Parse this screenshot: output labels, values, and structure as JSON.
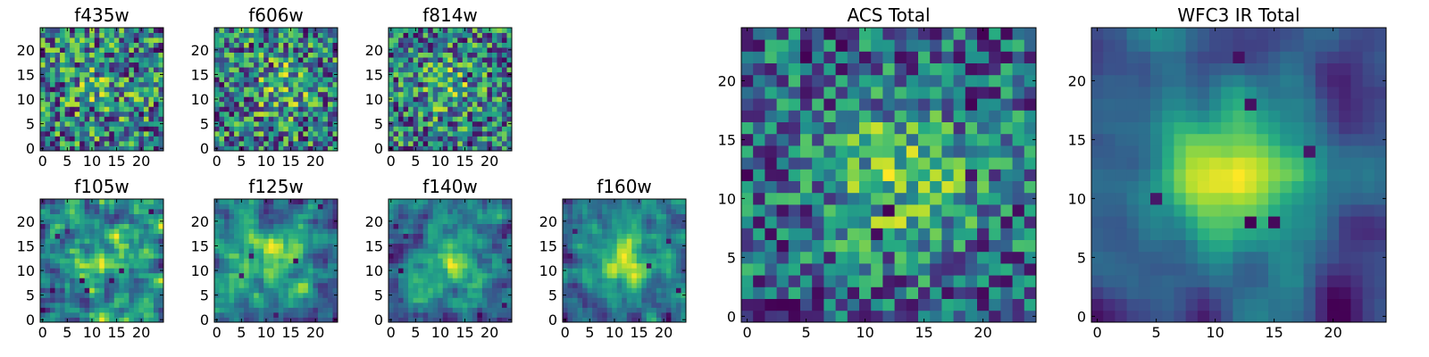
{
  "figure": {
    "description_free": true
  },
  "colors": {
    "colormap": "viridis",
    "frame": "#000000",
    "background": "#ffffff"
  },
  "chart_data": [
    {
      "id": "f435w",
      "type": "heatmap",
      "title": "f435w",
      "grid_size": 25,
      "xticks": [
        0,
        5,
        10,
        15,
        20
      ],
      "yticks": [
        0,
        5,
        10,
        15,
        20
      ],
      "xlim": [
        -0.5,
        24.5
      ],
      "ylim": [
        -0.5,
        24.5
      ],
      "smoothness": 0,
      "peak": [
        12,
        12
      ],
      "peak_strength": 0.15,
      "seed": 11
    },
    {
      "id": "f606w",
      "type": "heatmap",
      "title": "f606w",
      "grid_size": 25,
      "xticks": [
        0,
        5,
        10,
        15,
        20
      ],
      "yticks": [
        0,
        5,
        10,
        15,
        20
      ],
      "xlim": [
        -0.5,
        24.5
      ],
      "ylim": [
        -0.5,
        24.5
      ],
      "smoothness": 0,
      "peak": [
        13,
        13
      ],
      "peak_strength": 0.2,
      "seed": 23
    },
    {
      "id": "f814w",
      "type": "heatmap",
      "title": "f814w",
      "grid_size": 25,
      "xticks": [
        0,
        5,
        10,
        15,
        20
      ],
      "yticks": [
        0,
        5,
        10,
        15,
        20
      ],
      "xlim": [
        -0.5,
        24.5
      ],
      "ylim": [
        -0.5,
        24.5
      ],
      "smoothness": 0,
      "peak": [
        12,
        13
      ],
      "peak_strength": 0.2,
      "seed": 37
    },
    {
      "id": "f105w",
      "type": "heatmap",
      "title": "f105w",
      "grid_size": 25,
      "xticks": [
        0,
        5,
        10,
        15,
        20
      ],
      "yticks": [
        0,
        5,
        10,
        15,
        20
      ],
      "xlim": [
        -0.5,
        24.5
      ],
      "ylim": [
        -0.5,
        24.5
      ],
      "smoothness": 1,
      "peak": [
        13,
        12
      ],
      "peak_strength": 0.25,
      "seed": 41
    },
    {
      "id": "f125w",
      "type": "heatmap",
      "title": "f125w",
      "grid_size": 25,
      "xticks": [
        0,
        5,
        10,
        15,
        20
      ],
      "yticks": [
        0,
        5,
        10,
        15,
        20
      ],
      "xlim": [
        -0.5,
        24.5
      ],
      "ylim": [
        -0.5,
        24.5
      ],
      "smoothness": 1,
      "peak": [
        12,
        13
      ],
      "peak_strength": 0.3,
      "seed": 53
    },
    {
      "id": "f140w",
      "type": "heatmap",
      "title": "f140w",
      "grid_size": 25,
      "xticks": [
        0,
        5,
        10,
        15,
        20
      ],
      "yticks": [
        0,
        5,
        10,
        15,
        20
      ],
      "xlim": [
        -0.5,
        24.5
      ],
      "ylim": [
        -0.5,
        24.5
      ],
      "smoothness": 1,
      "peak": [
        12,
        12
      ],
      "peak_strength": 0.35,
      "seed": 67
    },
    {
      "id": "f160w",
      "type": "heatmap",
      "title": "f160w",
      "grid_size": 25,
      "xticks": [
        0,
        5,
        10,
        15,
        20
      ],
      "yticks": [
        0,
        5,
        10,
        15,
        20
      ],
      "xlim": [
        -0.5,
        24.5
      ],
      "ylim": [
        -0.5,
        24.5
      ],
      "smoothness": 1,
      "peak": [
        12,
        12
      ],
      "peak_strength": 0.45,
      "seed": 79
    },
    {
      "id": "acs-total",
      "type": "heatmap",
      "title": "ACS Total",
      "grid_size": 25,
      "xticks": [
        0,
        5,
        10,
        15,
        20
      ],
      "yticks": [
        0,
        5,
        10,
        15,
        20
      ],
      "xlim": [
        -0.5,
        24.5
      ],
      "ylim": [
        -0.5,
        24.5
      ],
      "smoothness": 0,
      "peak": [
        13,
        12
      ],
      "peak_strength": 0.35,
      "seed": 97
    },
    {
      "id": "wfc3-ir-total",
      "type": "heatmap",
      "title": "WFC3 IR Total",
      "grid_size": 25,
      "xticks": [
        0,
        5,
        10,
        15,
        20
      ],
      "yticks": [
        0,
        5,
        10,
        15,
        20
      ],
      "xlim": [
        -0.5,
        24.5
      ],
      "ylim": [
        -0.5,
        24.5
      ],
      "smoothness": 2,
      "peak": [
        12,
        12
      ],
      "peak_strength": 0.6,
      "seed": 131
    }
  ]
}
